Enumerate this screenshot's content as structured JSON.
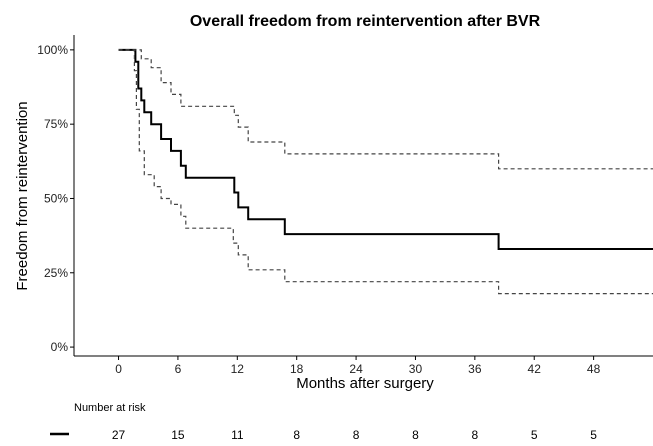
{
  "chart_data": {
    "type": "line",
    "title": "Overall freedom from reintervention after BVR",
    "xlabel": "Months after surgery",
    "ylabel": "Freedom from reintervention",
    "xlim": [
      -4.5,
      54
    ],
    "ylim": [
      -3,
      105
    ],
    "x_ticks": [
      0,
      6,
      12,
      18,
      24,
      30,
      36,
      42,
      48
    ],
    "y_ticks": [
      {
        "value": 0,
        "label": "0%"
      },
      {
        "value": 25,
        "label": "25%"
      },
      {
        "value": 50,
        "label": "50%"
      },
      {
        "value": 75,
        "label": "75%"
      },
      {
        "value": 100,
        "label": "100%"
      }
    ],
    "grid": false,
    "series": [
      {
        "line": "solid",
        "color": "#000000",
        "steps": [
          [
            0,
            100
          ],
          [
            1.5,
            100
          ],
          [
            1.7,
            96
          ],
          [
            2.0,
            87
          ],
          [
            2.3,
            83
          ],
          [
            2.6,
            79
          ],
          [
            3.3,
            75
          ],
          [
            4.3,
            70
          ],
          [
            5.3,
            66
          ],
          [
            6.3,
            61
          ],
          [
            6.8,
            57
          ],
          [
            11.7,
            52
          ],
          [
            12.1,
            47
          ],
          [
            13.1,
            43
          ],
          [
            16.8,
            38
          ],
          [
            38.2,
            38
          ],
          [
            38.4,
            33
          ],
          [
            54,
            33
          ]
        ]
      },
      {
        "line": "dashed",
        "color": "#444444",
        "steps": [
          [
            0,
            100
          ],
          [
            1.8,
            100
          ],
          [
            2.3,
            97
          ],
          [
            3.3,
            94
          ],
          [
            4.3,
            89
          ],
          [
            5.3,
            85
          ],
          [
            6.3,
            81
          ],
          [
            11.7,
            78
          ],
          [
            12.1,
            74
          ],
          [
            13.1,
            69
          ],
          [
            16.8,
            65
          ],
          [
            38.2,
            65
          ],
          [
            38.4,
            60
          ],
          [
            54,
            60
          ]
        ]
      },
      {
        "line": "dashed",
        "color": "#444444",
        "steps": [
          [
            0,
            100
          ],
          [
            1.5,
            100
          ],
          [
            1.6,
            93
          ],
          [
            1.8,
            80
          ],
          [
            2.1,
            66
          ],
          [
            2.6,
            58
          ],
          [
            3.6,
            54
          ],
          [
            4.3,
            50
          ],
          [
            5.3,
            48
          ],
          [
            6.3,
            44
          ],
          [
            6.8,
            40
          ],
          [
            11.6,
            35
          ],
          [
            12.1,
            31
          ],
          [
            13.1,
            26
          ],
          [
            16.8,
            22
          ],
          [
            38.2,
            22
          ],
          [
            38.4,
            18
          ],
          [
            54,
            18
          ]
        ]
      }
    ]
  },
  "risk_table": {
    "title": "Number at risk",
    "legend_symbol": "solid-line",
    "x": [
      0,
      6,
      12,
      18,
      24,
      30,
      36,
      42,
      48
    ],
    "values": [
      "27",
      "15",
      "11",
      "8",
      "8",
      "8",
      "8",
      "5",
      "5"
    ]
  }
}
